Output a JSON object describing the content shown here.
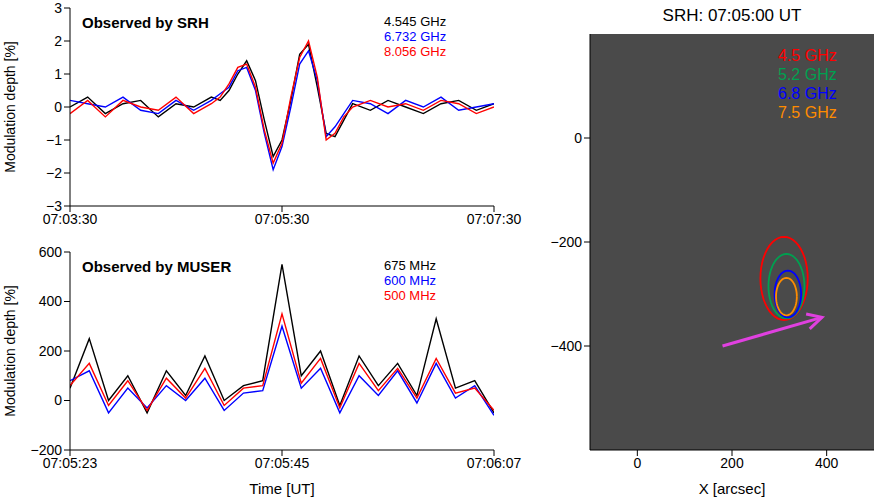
{
  "chart_data": [
    {
      "type": "line",
      "annotation": "Observed by SRH",
      "y_label": "Modulation depth [%]",
      "x": [
        "07:03:30",
        "07:03:40",
        "07:03:50",
        "07:04:00",
        "07:04:10",
        "07:04:20",
        "07:04:30",
        "07:04:40",
        "07:04:50",
        "07:04:55",
        "07:05:00",
        "07:05:05",
        "07:05:10",
        "07:05:15",
        "07:05:20",
        "07:05:25",
        "07:05:30",
        "07:05:35",
        "07:05:40",
        "07:05:45",
        "07:05:50",
        "07:05:55",
        "07:06:00",
        "07:06:05",
        "07:06:10",
        "07:06:20",
        "07:06:30",
        "07:06:40",
        "07:06:50",
        "07:07:00",
        "07:07:10",
        "07:07:20",
        "07:07:30"
      ],
      "xlim": [
        "07:03:30",
        "07:07:30"
      ],
      "xticks": [
        "07:03:30",
        "07:05:30",
        "07:07:30"
      ],
      "ylim": [
        -3,
        3
      ],
      "yticks": [
        -3,
        -2,
        -1,
        0,
        1,
        2,
        3
      ],
      "legend": "upper right",
      "series": [
        {
          "name": "4.545 GHz",
          "color": "#000000",
          "values": [
            0.0,
            0.3,
            -0.2,
            0.1,
            0.2,
            -0.3,
            0.1,
            0.0,
            0.3,
            0.2,
            0.5,
            1.0,
            1.4,
            0.8,
            -0.4,
            -1.5,
            -1.0,
            0.2,
            1.6,
            1.9,
            0.6,
            -0.8,
            -0.9,
            -0.4,
            0.1,
            -0.1,
            0.2,
            0.0,
            -0.2,
            0.1,
            0.2,
            -0.1,
            0.1
          ]
        },
        {
          "name": "6.732 GHz",
          "color": "#0000ff",
          "values": [
            0.2,
            0.1,
            0.0,
            0.3,
            -0.1,
            -0.2,
            0.2,
            -0.1,
            0.2,
            0.4,
            0.6,
            1.1,
            1.2,
            0.5,
            -0.8,
            -1.9,
            -1.2,
            0.0,
            1.3,
            1.7,
            0.8,
            -0.9,
            -0.6,
            -0.2,
            0.2,
            0.1,
            -0.2,
            0.2,
            0.0,
            0.3,
            -0.1,
            0.0,
            0.1
          ]
        },
        {
          "name": "8.056 GHz",
          "color": "#ff0000",
          "values": [
            -0.2,
            0.2,
            -0.3,
            0.2,
            0.0,
            -0.1,
            0.3,
            -0.2,
            0.1,
            0.3,
            0.7,
            1.2,
            1.3,
            0.6,
            -0.7,
            -1.7,
            -1.1,
            0.3,
            1.5,
            2.0,
            0.9,
            -1.0,
            -0.8,
            -0.3,
            0.0,
            0.2,
            0.0,
            0.1,
            -0.1,
            0.2,
            0.1,
            -0.2,
            0.0
          ]
        }
      ]
    },
    {
      "type": "line",
      "annotation": "Observed by MUSER",
      "y_label": "Modulation depth [%]",
      "x_label": "Time [UT]",
      "x": [
        "07:05:23",
        "07:05:25",
        "07:05:27",
        "07:05:29",
        "07:05:31",
        "07:05:33",
        "07:05:35",
        "07:05:37",
        "07:05:39",
        "07:05:41",
        "07:05:43",
        "07:05:45",
        "07:05:47",
        "07:05:49",
        "07:05:51",
        "07:05:53",
        "07:05:55",
        "07:05:57",
        "07:05:59",
        "07:06:01",
        "07:06:03",
        "07:06:05",
        "07:06:07"
      ],
      "xlim": [
        "07:05:23",
        "07:06:07"
      ],
      "xticks": [
        "07:05:23",
        "07:05:45",
        "07:06:07"
      ],
      "ylim": [
        -200,
        600
      ],
      "yticks": [
        -200,
        0,
        200,
        400,
        600
      ],
      "legend": "upper right",
      "series": [
        {
          "name": "675 MHz",
          "color": "#000000",
          "values": [
            50,
            250,
            0,
            100,
            -50,
            120,
            20,
            180,
            0,
            60,
            80,
            550,
            100,
            200,
            -20,
            180,
            60,
            150,
            20,
            330,
            50,
            80,
            -50
          ]
        },
        {
          "name": "600 MHz",
          "color": "#0000ff",
          "values": [
            80,
            120,
            -50,
            50,
            -30,
            60,
            0,
            90,
            -40,
            30,
            40,
            300,
            50,
            130,
            -50,
            100,
            20,
            120,
            -10,
            150,
            10,
            60,
            -60
          ]
        },
        {
          "name": "500 MHz",
          "color": "#ff0000",
          "values": [
            60,
            150,
            -20,
            80,
            -40,
            90,
            10,
            130,
            -20,
            50,
            60,
            350,
            70,
            170,
            -30,
            150,
            40,
            130,
            10,
            170,
            30,
            50,
            -40
          ]
        }
      ]
    },
    {
      "type": "contour",
      "title": "SRH: 07:05:00 UT",
      "x_label": "X [arcsec]",
      "xlim": [
        -100,
        500
      ],
      "xticks": [
        0,
        200,
        400
      ],
      "ylim": [
        -600,
        200
      ],
      "yticks": [
        -400,
        -200,
        0
      ],
      "legend": "upper right",
      "contours": [
        {
          "name": "4.5 GHz",
          "color": "#ff0000",
          "center": [
            310,
            -270
          ],
          "rx": 50,
          "ry": 80
        },
        {
          "name": "5.2 GHz",
          "color": "#00a050",
          "center": [
            315,
            -285
          ],
          "rx": 38,
          "ry": 62
        },
        {
          "name": "6.8 GHz",
          "color": "#0000ff",
          "center": [
            318,
            -300
          ],
          "rx": 28,
          "ry": 45
        },
        {
          "name": "7.5 GHz",
          "color": "#ff8c00",
          "center": [
            315,
            -305
          ],
          "rx": 22,
          "ry": 36
        }
      ],
      "arrow": {
        "from": [
          180,
          -400
        ],
        "to": [
          390,
          -345
        ],
        "color": "#e040e0"
      }
    }
  ]
}
